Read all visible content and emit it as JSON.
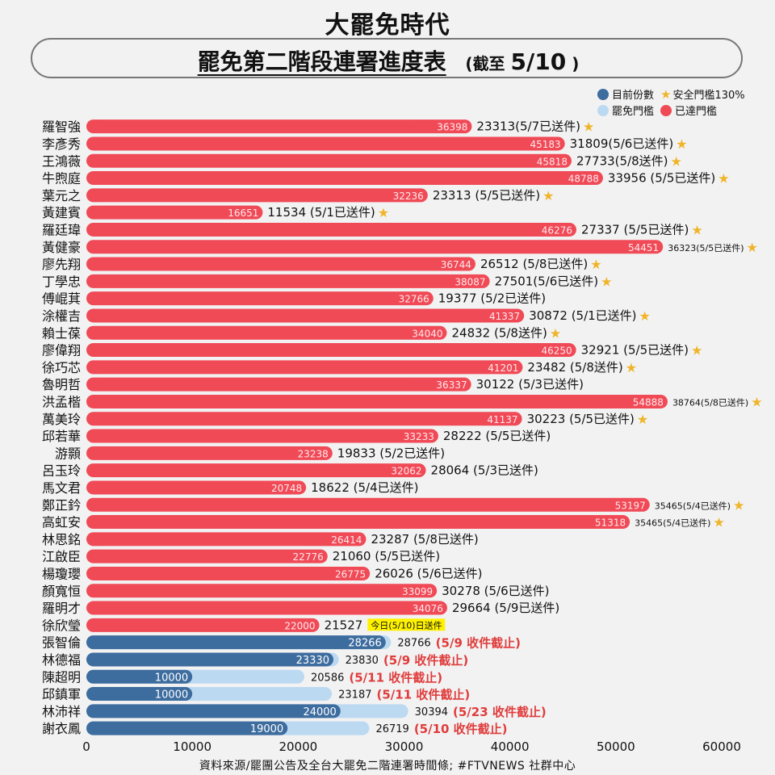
{
  "header": {
    "brand": "大罷免時代",
    "title": "罷免第二階段連署進度表",
    "date_prefix": "(截至",
    "date_value": "5/10",
    "date_suffix": ")"
  },
  "legend": {
    "current": "目前份數",
    "safe": "安全門檻130%",
    "threshold": "罷免門檻",
    "reached": "已達門檻"
  },
  "colors": {
    "reached": "#f04a57",
    "current": "#3d6c9e",
    "threshold": "#bcd9f2",
    "star": "#f0b429",
    "deadline": "#e03c3c",
    "today_bg": "#fff200"
  },
  "chart_data": {
    "type": "bar",
    "orientation": "horizontal",
    "xlim": [
      0,
      65000
    ],
    "x_ticks": [
      "0",
      "10000",
      "20000",
      "30000",
      "40000",
      "50000",
      "60000"
    ],
    "rows": [
      {
        "name": "羅智強",
        "value": 36398,
        "threshold": 23313,
        "note": "23313(5/7已送件)",
        "status": "reached",
        "star": true
      },
      {
        "name": "李彥秀",
        "value": 45183,
        "threshold": 31809,
        "note": "31809(5/6已送件)",
        "status": "reached",
        "star": true
      },
      {
        "name": "王鴻薇",
        "value": 45818,
        "threshold": 27733,
        "note": "27733(5/8送件)",
        "status": "reached",
        "star": true
      },
      {
        "name": "牛煦庭",
        "value": 48788,
        "threshold": 33956,
        "note": "33956 (5/5已送件)",
        "status": "reached",
        "star": true
      },
      {
        "name": "葉元之",
        "value": 32236,
        "threshold": 23313,
        "note": "23313 (5/5已送件)",
        "status": "reached",
        "star": true
      },
      {
        "name": "黃建賓",
        "value": 16651,
        "threshold": 11534,
        "note": "11534 (5/1已送件)",
        "status": "reached",
        "star": true
      },
      {
        "name": "羅廷瑋",
        "value": 46276,
        "threshold": 27337,
        "note": "27337 (5/5已送件)",
        "status": "reached",
        "star": true
      },
      {
        "name": "黃健豪",
        "value": 54451,
        "threshold": 36323,
        "note": "36323(5/5已送件)",
        "status": "reached",
        "star": true,
        "small": true
      },
      {
        "name": "廖先翔",
        "value": 36744,
        "threshold": 26512,
        "note": "26512 (5/8已送件)",
        "status": "reached",
        "star": true
      },
      {
        "name": "丁學忠",
        "value": 38087,
        "threshold": 27501,
        "note": "27501(5/6已送件)",
        "status": "reached",
        "star": true
      },
      {
        "name": "傅崐萁",
        "value": 32766,
        "threshold": 19377,
        "note": "19377 (5/2已送件)",
        "status": "reached",
        "star": false
      },
      {
        "name": "涂權吉",
        "value": 41337,
        "threshold": 30872,
        "note": "30872 (5/1已送件)",
        "status": "reached",
        "star": true
      },
      {
        "name": "賴士葆",
        "value": 34040,
        "threshold": 24832,
        "note": "24832 (5/8送件)",
        "status": "reached",
        "star": true
      },
      {
        "name": "廖偉翔",
        "value": 46250,
        "threshold": 32921,
        "note": "32921 (5/5已送件)",
        "status": "reached",
        "star": true
      },
      {
        "name": "徐巧芯",
        "value": 41201,
        "threshold": 23482,
        "note": "23482 (5/8送件)",
        "status": "reached",
        "star": true
      },
      {
        "name": "魯明哲",
        "value": 36337,
        "threshold": 30122,
        "note": "30122 (5/3已送件)",
        "status": "reached",
        "star": false
      },
      {
        "name": "洪孟楷",
        "value": 54888,
        "threshold": 38764,
        "note": "38764(5/8已送件)",
        "status": "reached",
        "star": true,
        "small": true
      },
      {
        "name": "萬美玲",
        "value": 41137,
        "threshold": 30223,
        "note": "30223 (5/5已送件)",
        "status": "reached",
        "star": true
      },
      {
        "name": "邱若華",
        "value": 33233,
        "threshold": 28222,
        "note": "28222 (5/5已送件)",
        "status": "reached",
        "star": false
      },
      {
        "name": "游顥",
        "value": 23238,
        "threshold": 19833,
        "note": "19833 (5/2已送件)",
        "status": "reached",
        "star": false
      },
      {
        "name": "呂玉玲",
        "value": 32062,
        "threshold": 28064,
        "note": "28064 (5/3已送件)",
        "status": "reached",
        "star": false
      },
      {
        "name": "馬文君",
        "value": 20748,
        "threshold": 18622,
        "note": "18622 (5/4已送件)",
        "status": "reached",
        "star": false
      },
      {
        "name": "鄭正鈐",
        "value": 53197,
        "threshold": 35465,
        "note": "35465(5/4已送件)",
        "status": "reached",
        "star": true,
        "small": true
      },
      {
        "name": "高虹安",
        "value": 51318,
        "threshold": 35465,
        "note": "35465(5/4已送件)",
        "status": "reached",
        "star": true,
        "small": true
      },
      {
        "name": "林思銘",
        "value": 26414,
        "threshold": 23287,
        "note": "23287 (5/8已送件)",
        "status": "reached",
        "star": false
      },
      {
        "name": "江啟臣",
        "value": 22776,
        "threshold": 21060,
        "note": "21060 (5/5已送件)",
        "status": "reached",
        "star": false
      },
      {
        "name": "楊瓊瓔",
        "value": 26775,
        "threshold": 26026,
        "note": "26026 (5/6已送件)",
        "status": "reached",
        "star": false
      },
      {
        "name": "顏寬恒",
        "value": 33099,
        "threshold": 30278,
        "note": "30278 (5/6已送件)",
        "status": "reached",
        "star": false
      },
      {
        "name": "羅明才",
        "value": 34076,
        "threshold": 29664,
        "note": "29664 (5/9已送件)",
        "status": "reached",
        "star": false
      },
      {
        "name": "徐欣瑩",
        "value": 22000,
        "threshold": 21527,
        "note": "21527",
        "status": "reached",
        "star": false,
        "today": "今日(5/10)日送件"
      },
      {
        "name": "張智倫",
        "value": 28266,
        "threshold": 28766,
        "note": "28766",
        "status": "progress",
        "deadline": "(5/9 收件截止)"
      },
      {
        "name": "林德福",
        "value": 23330,
        "threshold": 23830,
        "note": "23830",
        "status": "progress",
        "deadline": "(5/9 收件截止)"
      },
      {
        "name": "陳超明",
        "value": 10000,
        "threshold": 20586,
        "note": "20586",
        "status": "progress",
        "deadline": "(5/11 收件截止)"
      },
      {
        "name": "邱鎮軍",
        "value": 10000,
        "threshold": 23187,
        "note": "23187",
        "status": "progress",
        "deadline": "(5/11 收件截止)"
      },
      {
        "name": "林沛祥",
        "value": 24000,
        "threshold": 30394,
        "note": "30394",
        "status": "progress",
        "deadline": "(5/23 收件截止)"
      },
      {
        "name": "謝衣鳳",
        "value": 19000,
        "threshold": 26719,
        "note": "26719",
        "status": "progress",
        "deadline": "(5/10 收件截止)"
      }
    ]
  },
  "footer": "資料來源/罷團公告及全台大罷免二階連署時間條; #FTVNEWS 社群中心"
}
